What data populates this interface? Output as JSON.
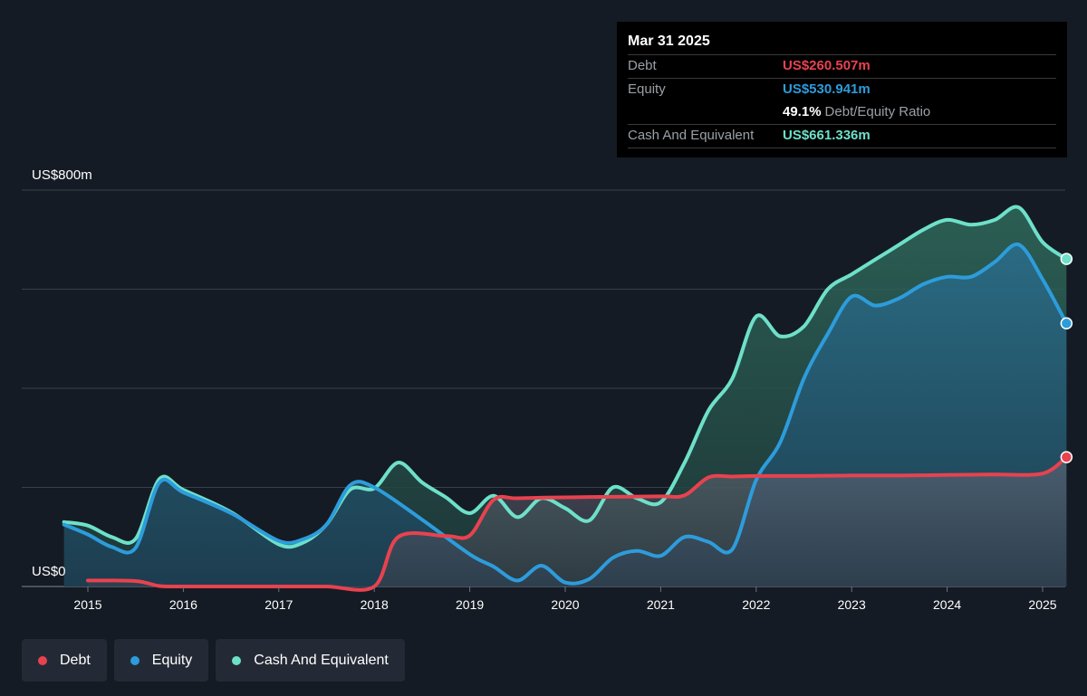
{
  "tooltip": {
    "date": "Mar 31 2025",
    "debt_label": "Debt",
    "debt_value": "US$260.507m",
    "equity_label": "Equity",
    "equity_value": "US$530.941m",
    "ratio_value": "49.1%",
    "ratio_label": "Debt/Equity Ratio",
    "cash_label": "Cash And Equivalent",
    "cash_value": "US$661.336m"
  },
  "legend": [
    {
      "label": "Debt",
      "color": "#e8424f"
    },
    {
      "label": "Equity",
      "color": "#2d9cdb"
    },
    {
      "label": "Cash And Equivalent",
      "color": "#6ee0c9"
    }
  ],
  "colors": {
    "debt": "#e8424f",
    "equity": "#2d9cdb",
    "cash": "#6ee0c9",
    "background": "#151b24",
    "grid": "#3a404b"
  },
  "chart_data": {
    "type": "area",
    "title": "",
    "xlabel": "",
    "ylabel": "",
    "y_ticks": [
      {
        "value": 0,
        "label": "US$0"
      },
      {
        "value": 800,
        "label": "US$800m"
      }
    ],
    "ylim": [
      0,
      800
    ],
    "x_ticks": [
      "2015",
      "2016",
      "2017",
      "2018",
      "2019",
      "2020",
      "2021",
      "2022",
      "2023",
      "2024",
      "2025"
    ],
    "grid": true,
    "legend_position": "bottom-left",
    "series": [
      {
        "name": "Debt",
        "x": [
          2015.0,
          2015.5,
          2015.75,
          2016.0,
          2016.5,
          2017.0,
          2017.5,
          2018.0,
          2018.25,
          2018.75,
          2019.0,
          2019.25,
          2019.5,
          2020.0,
          2020.5,
          2021.0,
          2021.25,
          2021.5,
          2021.75,
          2022.0,
          2022.5,
          2023.0,
          2023.5,
          2024.0,
          2024.5,
          2025.0,
          2025.25
        ],
        "values": [
          12,
          11,
          1,
          0,
          0,
          0,
          0,
          0,
          100,
          102,
          103,
          175,
          178,
          180,
          181,
          182,
          184,
          220,
          222,
          223,
          223,
          224,
          224,
          225,
          226,
          228,
          261
        ]
      },
      {
        "name": "Equity",
        "x": [
          2014.75,
          2015.0,
          2015.25,
          2015.5,
          2015.75,
          2016.0,
          2016.5,
          2017.0,
          2017.25,
          2017.5,
          2017.75,
          2018.0,
          2018.5,
          2019.0,
          2019.25,
          2019.5,
          2019.75,
          2020.0,
          2020.25,
          2020.5,
          2020.75,
          2021.0,
          2021.25,
          2021.5,
          2021.75,
          2022.0,
          2022.25,
          2022.5,
          2022.75,
          2023.0,
          2023.25,
          2023.5,
          2023.75,
          2024.0,
          2024.25,
          2024.5,
          2024.75,
          2025.0,
          2025.25
        ],
        "values": [
          125,
          105,
          80,
          78,
          210,
          190,
          148,
          92,
          95,
          125,
          205,
          200,
          135,
          65,
          40,
          12,
          42,
          8,
          15,
          58,
          72,
          62,
          100,
          90,
          75,
          215,
          290,
          420,
          510,
          585,
          567,
          582,
          610,
          625,
          625,
          655,
          690,
          620,
          531
        ]
      },
      {
        "name": "Cash And Equivalent",
        "x": [
          2014.75,
          2015.0,
          2015.25,
          2015.5,
          2015.75,
          2016.0,
          2016.5,
          2017.0,
          2017.25,
          2017.5,
          2017.75,
          2018.0,
          2018.25,
          2018.5,
          2018.75,
          2019.0,
          2019.25,
          2019.5,
          2019.75,
          2020.0,
          2020.25,
          2020.5,
          2020.75,
          2021.0,
          2021.25,
          2021.5,
          2021.75,
          2022.0,
          2022.25,
          2022.5,
          2022.75,
          2023.0,
          2023.25,
          2023.5,
          2023.75,
          2024.0,
          2024.25,
          2024.5,
          2024.75,
          2025.0,
          2025.25
        ],
        "values": [
          130,
          123,
          100,
          96,
          217,
          195,
          150,
          85,
          88,
          125,
          196,
          198,
          250,
          210,
          180,
          148,
          183,
          140,
          178,
          158,
          133,
          200,
          178,
          170,
          250,
          355,
          420,
          545,
          505,
          525,
          600,
          630,
          660,
          690,
          720,
          740,
          730,
          740,
          765,
          695,
          661
        ]
      }
    ]
  }
}
